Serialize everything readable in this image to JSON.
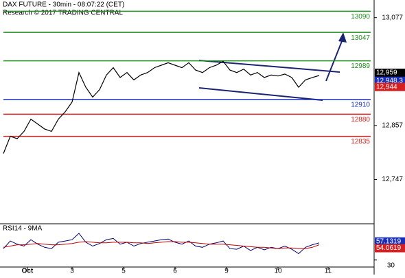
{
  "chart_data": [
    {
      "type": "line",
      "title": "DAX FUTURE - 30min - 08:07:22 (CET)",
      "subtitle": "Research © 2017 TRADING CENTRAL",
      "color": "#000000",
      "values": [
        12800,
        12835,
        12830,
        12845,
        12870,
        12860,
        12850,
        12845,
        12870,
        12885,
        12905,
        12965,
        12935,
        12915,
        12930,
        12960,
        12975,
        12955,
        12965,
        12950,
        12960,
        12965,
        12975,
        12980,
        12985,
        12980,
        12975,
        12985,
        12970,
        12965,
        12975,
        12980,
        12988,
        12970,
        12965,
        12972,
        12960,
        12965,
        12955,
        12960,
        12958,
        12962,
        12955,
        12935,
        12950,
        12955,
        12959
      ],
      "xlim": [
        -0.5,
        54
      ],
      "xticks": [
        {
          "value": 3.5,
          "label": "Oct"
        },
        {
          "value": 10,
          "label": "3"
        },
        {
          "value": 17.5,
          "label": "5"
        },
        {
          "value": 25,
          "label": "6"
        },
        {
          "value": 32.5,
          "label": "9"
        },
        {
          "value": 40,
          "label": "10"
        },
        {
          "value": 47.3,
          "label": "11"
        }
      ],
      "ylim": [
        12658,
        13113
      ],
      "yticks": [
        {
          "value": 13077,
          "label": "13,077"
        },
        {
          "value": 12857,
          "label": "12,857"
        },
        {
          "value": 12747,
          "label": "12,747"
        }
      ],
      "levels": [
        {
          "value": 13090,
          "color": "#1f8f1f"
        },
        {
          "value": 13047,
          "color": "#1f8f1f"
        },
        {
          "value": 12989,
          "color": "#1f8f1f"
        },
        {
          "value": 12910,
          "color": "#1a2fb5"
        },
        {
          "value": 12880,
          "color": "#d42020"
        },
        {
          "value": 12835,
          "color": "#d42020"
        }
      ],
      "price_tags": [
        {
          "value": 12959,
          "label": "12,959",
          "color": "#000000"
        },
        {
          "value": 12948.3,
          "label": "12,948.3",
          "color": "#1a2fb5"
        },
        {
          "value": 12944,
          "label": "12,944",
          "color": "#d42020"
        }
      ]
    },
    {
      "type": "line",
      "title": "RSI14 - 9MA",
      "series": [
        {
          "color": "#00006e",
          "values": [
            48,
            60,
            55,
            52,
            62,
            55,
            50,
            48,
            58,
            60,
            62,
            72,
            58,
            52,
            56,
            62,
            64,
            55,
            58,
            52,
            56,
            58,
            60,
            62,
            63,
            58,
            55,
            60,
            52,
            50,
            55,
            57,
            60,
            48,
            47,
            52,
            45,
            50,
            46,
            50,
            48,
            52,
            47,
            40,
            50,
            54,
            57
          ]
        },
        {
          "color": "#c00000",
          "values": [
            50,
            52,
            54,
            54,
            55,
            56,
            55,
            54,
            54,
            55,
            56,
            58,
            59,
            58,
            57,
            57,
            58,
            58,
            58,
            57,
            57,
            56,
            57,
            58,
            59,
            59,
            58,
            58,
            57,
            56,
            55,
            55,
            55,
            54,
            53,
            52,
            51,
            50,
            50,
            49,
            48,
            49,
            49,
            48,
            48,
            50,
            54
          ]
        }
      ],
      "ylim": [
        20,
        85
      ],
      "yticks": [
        30
      ],
      "tags": [
        {
          "value": 57.1319,
          "color": "#1a2fb5"
        },
        {
          "value": 54.0619,
          "color": "#d42020"
        }
      ]
    }
  ]
}
